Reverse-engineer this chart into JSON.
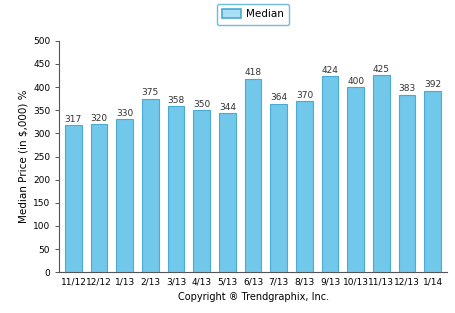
{
  "categories": [
    "11/12",
    "12/12",
    "1/13",
    "2/13",
    "3/13",
    "4/13",
    "5/13",
    "6/13",
    "7/13",
    "8/13",
    "9/13",
    "10/13",
    "11/13",
    "12/13",
    "1/14"
  ],
  "values": [
    317,
    320,
    330,
    375,
    358,
    350,
    344,
    418,
    364,
    370,
    424,
    400,
    425,
    383,
    392
  ],
  "bar_color": "#72c8ea",
  "bar_edge_color": "#4aaad2",
  "ylim": [
    0,
    500
  ],
  "yticks": [
    0,
    50,
    100,
    150,
    200,
    250,
    300,
    350,
    400,
    450,
    500
  ],
  "ylabel": "Median Price (in $,000) %",
  "xlabel": "Copyright ® Trendgraphix, Inc.",
  "legend_label": "Median",
  "legend_facecolor": "#aadff5",
  "legend_edgecolor": "#4aaad2",
  "label_fontsize": 6.5,
  "axis_fontsize": 7.5,
  "tick_fontsize": 6.5,
  "bar_width": 0.65
}
